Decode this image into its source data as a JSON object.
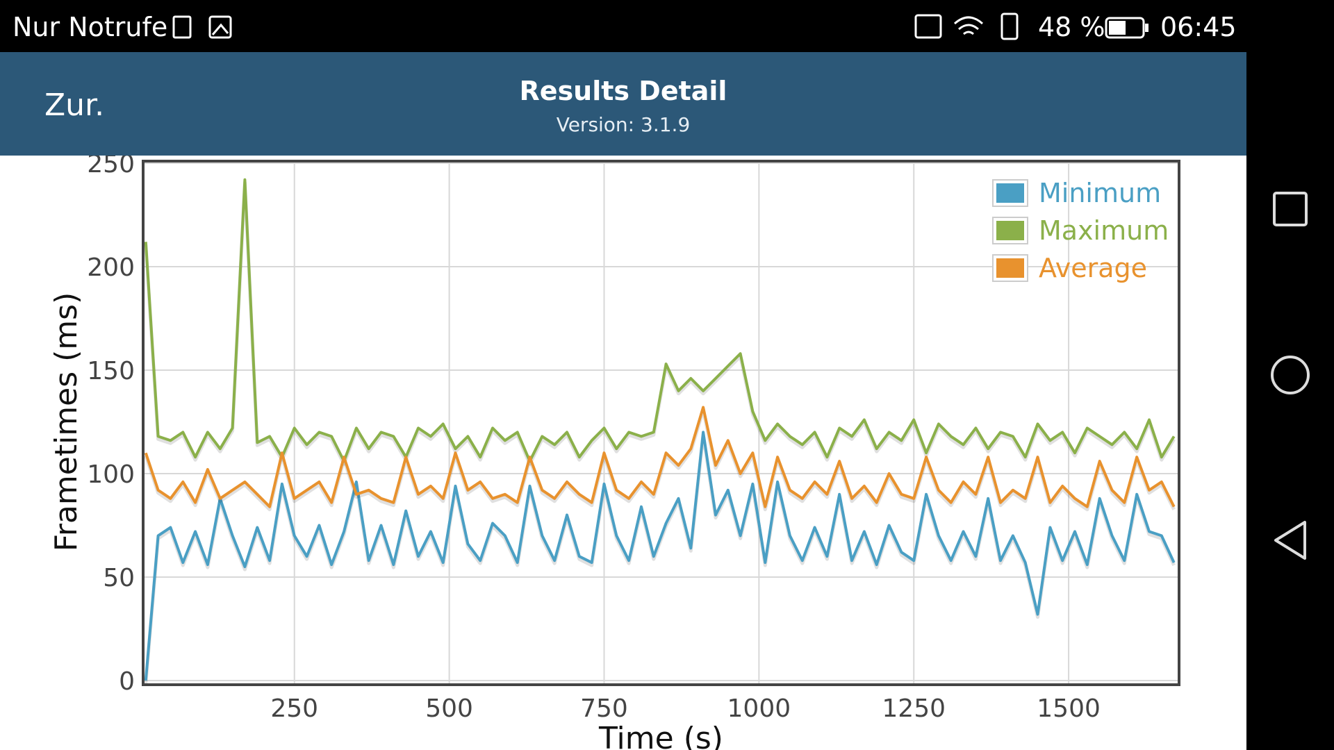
{
  "status_bar": {
    "carrier": "Nur Notrufe",
    "battery": "48 %",
    "time": "06:45"
  },
  "header": {
    "back": "Zur.",
    "title": "Results Detail",
    "subtitle": "Version: 3.1.9"
  },
  "chart_data": {
    "type": "line",
    "xlabel": "Time (s)",
    "ylabel": "Frametimes (ms)",
    "x": [
      10,
      30,
      50,
      70,
      90,
      110,
      130,
      150,
      170,
      190,
      210,
      230,
      250,
      270,
      290,
      310,
      330,
      350,
      370,
      390,
      410,
      430,
      450,
      470,
      490,
      510,
      530,
      550,
      570,
      590,
      610,
      630,
      650,
      670,
      690,
      710,
      730,
      750,
      770,
      790,
      810,
      830,
      850,
      870,
      890,
      910,
      930,
      950,
      970,
      990,
      1010,
      1030,
      1050,
      1070,
      1090,
      1110,
      1130,
      1150,
      1170,
      1190,
      1210,
      1230,
      1250,
      1270,
      1290,
      1310,
      1330,
      1350,
      1370,
      1390,
      1410,
      1430,
      1450,
      1470,
      1490,
      1510,
      1530,
      1550,
      1570,
      1590,
      1610,
      1630,
      1650,
      1670
    ],
    "series": [
      {
        "name": "Minimum",
        "color": "#4a9fc4",
        "values": [
          0,
          70,
          74,
          57,
          72,
          56,
          88,
          70,
          55,
          74,
          58,
          95,
          70,
          60,
          75,
          56,
          72,
          96,
          58,
          75,
          56,
          82,
          60,
          72,
          57,
          94,
          66,
          58,
          76,
          70,
          57,
          94,
          70,
          58,
          80,
          60,
          57,
          95,
          70,
          58,
          84,
          60,
          76,
          88,
          64,
          120,
          80,
          92,
          70,
          95,
          57,
          96,
          70,
          58,
          74,
          60,
          90,
          58,
          72,
          56,
          75,
          62,
          58,
          90,
          70,
          58,
          72,
          60,
          88,
          58,
          70,
          57,
          32,
          74,
          58,
          72,
          56,
          88,
          70,
          58,
          90,
          72,
          70,
          57
        ]
      },
      {
        "name": "Maximum",
        "color": "#8bb04a",
        "values": [
          212,
          118,
          116,
          120,
          108,
          120,
          112,
          122,
          242,
          115,
          118,
          108,
          122,
          114,
          120,
          118,
          106,
          122,
          112,
          120,
          118,
          108,
          122,
          118,
          124,
          112,
          118,
          108,
          122,
          116,
          120,
          106,
          118,
          114,
          120,
          108,
          116,
          122,
          112,
          120,
          118,
          120,
          153,
          140,
          146,
          140,
          146,
          152,
          158,
          130,
          116,
          124,
          118,
          114,
          120,
          108,
          122,
          118,
          126,
          112,
          120,
          116,
          126,
          110,
          124,
          118,
          114,
          122,
          112,
          120,
          118,
          108,
          124,
          116,
          120,
          110,
          122,
          118,
          114,
          120,
          112,
          126,
          108,
          118
        ]
      },
      {
        "name": "Average",
        "color": "#e8922e",
        "values": [
          110,
          92,
          88,
          96,
          86,
          102,
          88,
          92,
          96,
          90,
          84,
          110,
          88,
          92,
          96,
          86,
          108,
          90,
          92,
          88,
          86,
          108,
          90,
          94,
          88,
          110,
          92,
          96,
          88,
          90,
          86,
          108,
          92,
          88,
          96,
          90,
          86,
          110,
          92,
          88,
          96,
          90,
          110,
          104,
          112,
          132,
          104,
          116,
          100,
          110,
          84,
          108,
          92,
          88,
          96,
          90,
          106,
          88,
          94,
          86,
          100,
          90,
          88,
          108,
          92,
          86,
          96,
          90,
          108,
          86,
          92,
          88,
          108,
          86,
          94,
          88,
          84,
          106,
          92,
          86,
          108,
          92,
          96,
          84
        ]
      }
    ],
    "xlim": [
      8,
      1676
    ],
    "xticks": [
      250,
      500,
      750,
      1000,
      1250,
      1500
    ],
    "ylim": [
      0,
      250
    ],
    "yticks": [
      0,
      50,
      100,
      150,
      200,
      250
    ],
    "grid": true,
    "legend": "top-right"
  }
}
